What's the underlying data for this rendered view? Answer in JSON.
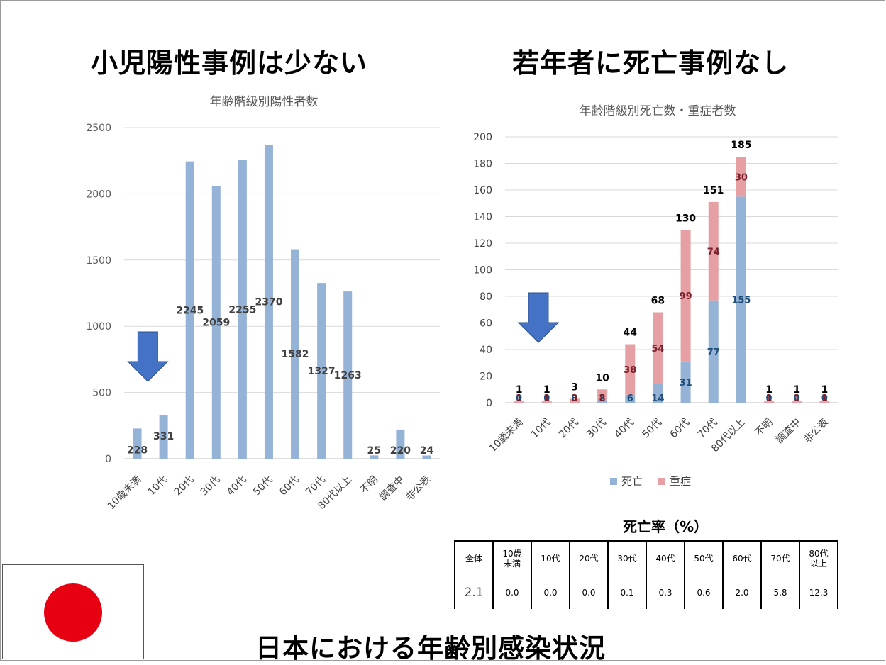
{
  "headline_left": "小児陽性事例は少ない",
  "headline_right": "若年者に死亡事例なし",
  "headline_bottom": "日本における年齢別感染状況",
  "chart_data": [
    {
      "type": "bar",
      "title": "年齢階級別陽性者数",
      "categories": [
        "10歳未満",
        "10代",
        "20代",
        "30代",
        "40代",
        "50代",
        "60代",
        "70代",
        "80代以上",
        "不明",
        "調査中",
        "非公表"
      ],
      "values": [
        228,
        331,
        2245,
        2059,
        2255,
        2370,
        1582,
        1327,
        1263,
        25,
        220,
        24
      ],
      "ylim": [
        0,
        2500
      ],
      "yticks": [
        0,
        500,
        1000,
        1500,
        2000,
        2500
      ],
      "grid": true,
      "bar_color": "#95b3d7",
      "label_color": "#404040"
    },
    {
      "type": "stacked bar",
      "title": "年齢階級別死亡数・重症者数",
      "categories": [
        "10歳未満",
        "10代",
        "20代",
        "30代",
        "40代",
        "50代",
        "60代",
        "70代",
        "80代以上",
        "不明",
        "調査中",
        "非公表"
      ],
      "series": [
        {
          "name": "死亡",
          "values": [
            0,
            0,
            0,
            2,
            6,
            14,
            31,
            77,
            155,
            0,
            0,
            0
          ],
          "color": "#95b3d7"
        },
        {
          "name": "重症",
          "values": [
            1,
            1,
            3,
            8,
            38,
            54,
            99,
            74,
            30,
            1,
            1,
            1
          ],
          "color": "#e6a0a4"
        }
      ],
      "totals": [
        1,
        1,
        3,
        10,
        44,
        68,
        130,
        151,
        185,
        1,
        1,
        1
      ],
      "ylim": [
        0,
        200
      ],
      "yticks": [
        0,
        20,
        40,
        60,
        80,
        100,
        120,
        140,
        160,
        180,
        200
      ],
      "grid": true,
      "legend_position": "bottom"
    }
  ],
  "mortality": {
    "title": "死亡率（%）",
    "headers": [
      "全体",
      "10歳\n未満",
      "10代",
      "20代",
      "30代",
      "40代",
      "50代",
      "60代",
      "70代",
      "80代\n以上"
    ],
    "values": [
      "2.1",
      "0.0",
      "0.0",
      "0.0",
      "0.1",
      "0.3",
      "0.6",
      "2.0",
      "5.8",
      "12.3"
    ]
  },
  "arrow_color": "#4472c4",
  "flag_color": "#e60012"
}
